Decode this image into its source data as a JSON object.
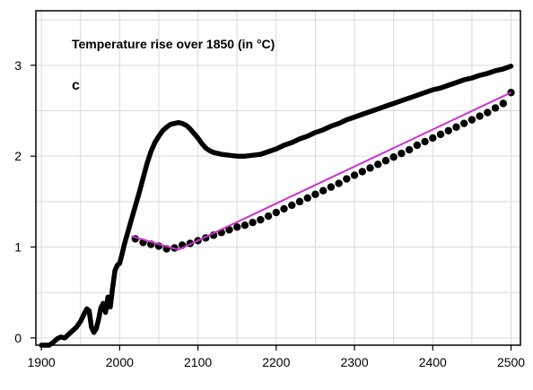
{
  "chart_data": {
    "type": "line",
    "title": "Temperature rise over 1850 (in °C)",
    "panel_label": "c",
    "xlabel": "",
    "ylabel": "",
    "xlim": [
      1893,
      2512
    ],
    "ylim": [
      -0.08,
      3.6
    ],
    "grid": true,
    "x_ticks": [
      1900,
      2000,
      2100,
      2200,
      2300,
      2400,
      2500
    ],
    "y_ticks": [
      0,
      1,
      2,
      3
    ],
    "series": [
      {
        "style": "solid",
        "color": "#000000",
        "points": [
          [
            1900,
            -0.08
          ],
          [
            1910,
            -0.08
          ],
          [
            1915,
            -0.05
          ],
          [
            1920,
            -0.01
          ],
          [
            1925,
            0.01
          ],
          [
            1930,
            0.0
          ],
          [
            1935,
            0.04
          ],
          [
            1940,
            0.08
          ],
          [
            1945,
            0.12
          ],
          [
            1950,
            0.18
          ],
          [
            1955,
            0.27
          ],
          [
            1958,
            0.32
          ],
          [
            1961,
            0.3
          ],
          [
            1964,
            0.12
          ],
          [
            1967,
            0.06
          ],
          [
            1970,
            0.1
          ],
          [
            1973,
            0.2
          ],
          [
            1976,
            0.33
          ],
          [
            1979,
            0.38
          ],
          [
            1982,
            0.28
          ],
          [
            1985,
            0.45
          ],
          [
            1988,
            0.34
          ],
          [
            1991,
            0.55
          ],
          [
            1994,
            0.74
          ],
          [
            1997,
            0.8
          ],
          [
            2000,
            0.82
          ],
          [
            2003,
            0.92
          ],
          [
            2006,
            1.03
          ],
          [
            2010,
            1.15
          ],
          [
            2015,
            1.3
          ],
          [
            2020,
            1.45
          ],
          [
            2025,
            1.6
          ],
          [
            2030,
            1.76
          ],
          [
            2035,
            1.92
          ],
          [
            2040,
            2.05
          ],
          [
            2045,
            2.15
          ],
          [
            2050,
            2.22
          ],
          [
            2055,
            2.28
          ],
          [
            2060,
            2.32
          ],
          [
            2065,
            2.35
          ],
          [
            2070,
            2.36
          ],
          [
            2075,
            2.37
          ],
          [
            2080,
            2.36
          ],
          [
            2085,
            2.34
          ],
          [
            2090,
            2.3
          ],
          [
            2095,
            2.25
          ],
          [
            2100,
            2.2
          ],
          [
            2105,
            2.14
          ],
          [
            2110,
            2.09
          ],
          [
            2115,
            2.06
          ],
          [
            2120,
            2.04
          ],
          [
            2130,
            2.02
          ],
          [
            2140,
            2.01
          ],
          [
            2150,
            2.0
          ],
          [
            2160,
            2.0
          ],
          [
            2170,
            2.01
          ],
          [
            2180,
            2.02
          ],
          [
            2190,
            2.05
          ],
          [
            2200,
            2.08
          ],
          [
            2210,
            2.12
          ],
          [
            2220,
            2.15
          ],
          [
            2230,
            2.19
          ],
          [
            2240,
            2.22
          ],
          [
            2250,
            2.26
          ],
          [
            2260,
            2.29
          ],
          [
            2270,
            2.33
          ],
          [
            2280,
            2.36
          ],
          [
            2290,
            2.4
          ],
          [
            2300,
            2.43
          ],
          [
            2310,
            2.46
          ],
          [
            2320,
            2.49
          ],
          [
            2330,
            2.52
          ],
          [
            2340,
            2.55
          ],
          [
            2350,
            2.58
          ],
          [
            2360,
            2.61
          ],
          [
            2370,
            2.64
          ],
          [
            2380,
            2.67
          ],
          [
            2390,
            2.7
          ],
          [
            2400,
            2.73
          ],
          [
            2410,
            2.75
          ],
          [
            2420,
            2.78
          ],
          [
            2430,
            2.81
          ],
          [
            2440,
            2.84
          ],
          [
            2450,
            2.86
          ],
          [
            2460,
            2.89
          ],
          [
            2470,
            2.91
          ],
          [
            2480,
            2.94
          ],
          [
            2490,
            2.96
          ],
          [
            2500,
            2.99
          ]
        ]
      },
      {
        "style": "dotted",
        "color": "#000000",
        "points": [
          [
            2020,
            1.09
          ],
          [
            2030,
            1.05
          ],
          [
            2040,
            1.03
          ],
          [
            2050,
            1.01
          ],
          [
            2060,
            0.98
          ],
          [
            2070,
            0.99
          ],
          [
            2080,
            1.02
          ],
          [
            2090,
            1.04
          ],
          [
            2100,
            1.07
          ],
          [
            2110,
            1.1
          ],
          [
            2120,
            1.13
          ],
          [
            2130,
            1.16
          ],
          [
            2140,
            1.19
          ],
          [
            2150,
            1.22
          ],
          [
            2160,
            1.24
          ],
          [
            2170,
            1.27
          ],
          [
            2180,
            1.3
          ],
          [
            2190,
            1.34
          ],
          [
            2200,
            1.38
          ],
          [
            2210,
            1.42
          ],
          [
            2220,
            1.46
          ],
          [
            2230,
            1.5
          ],
          [
            2240,
            1.54
          ],
          [
            2250,
            1.58
          ],
          [
            2260,
            1.62
          ],
          [
            2270,
            1.66
          ],
          [
            2280,
            1.7
          ],
          [
            2290,
            1.75
          ],
          [
            2300,
            1.79
          ],
          [
            2310,
            1.83
          ],
          [
            2320,
            1.87
          ],
          [
            2330,
            1.91
          ],
          [
            2340,
            1.95
          ],
          [
            2350,
            1.99
          ],
          [
            2360,
            2.03
          ],
          [
            2370,
            2.07
          ],
          [
            2380,
            2.12
          ],
          [
            2390,
            2.16
          ],
          [
            2400,
            2.2
          ],
          [
            2410,
            2.24
          ],
          [
            2420,
            2.28
          ],
          [
            2430,
            2.32
          ],
          [
            2440,
            2.36
          ],
          [
            2450,
            2.4
          ],
          [
            2460,
            2.44
          ],
          [
            2470,
            2.48
          ],
          [
            2480,
            2.53
          ],
          [
            2490,
            2.58
          ],
          [
            2500,
            2.7
          ]
        ]
      },
      {
        "style": "solid-thin",
        "color": "#cc33cc",
        "points": [
          [
            2015,
            1.12
          ],
          [
            2075,
            0.97
          ],
          [
            2500,
            2.7
          ]
        ]
      }
    ]
  }
}
